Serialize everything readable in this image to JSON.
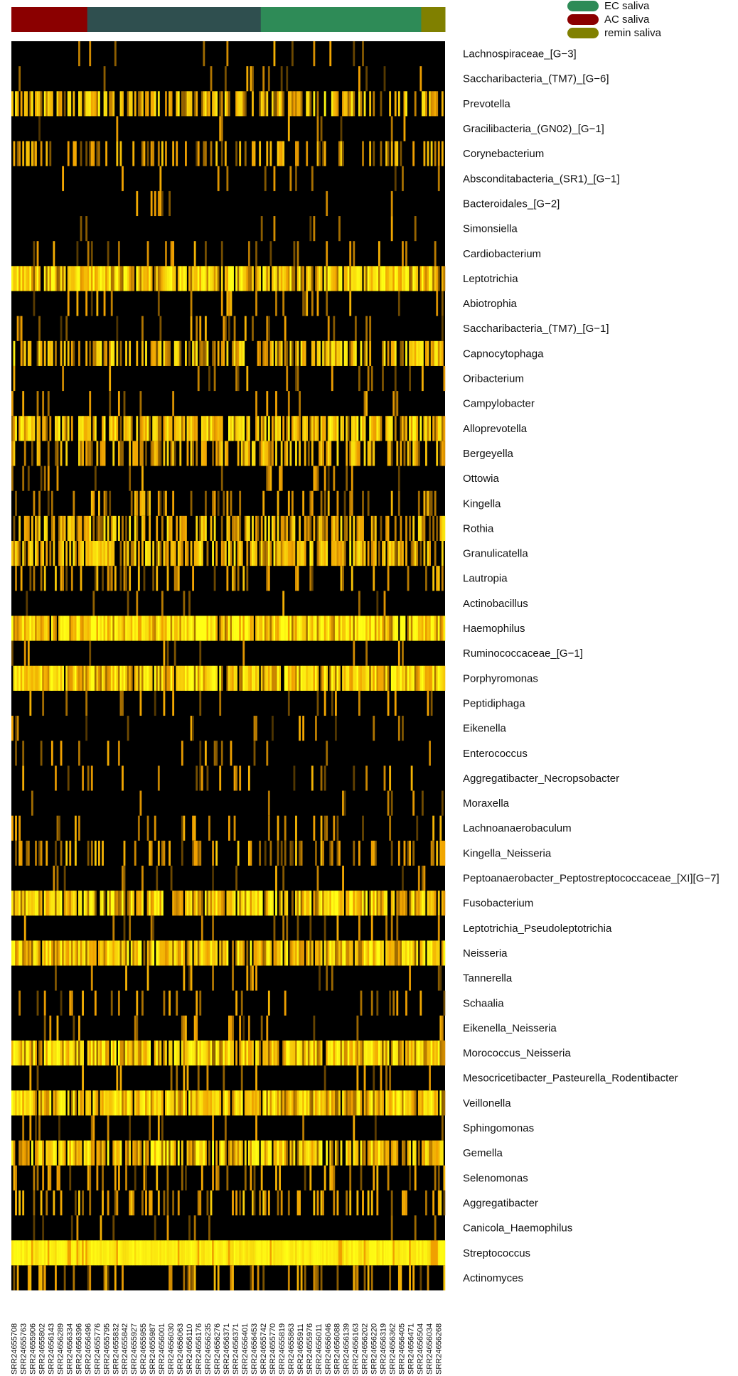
{
  "chart_data": {
    "type": "heatmap",
    "title": "",
    "xlabel": "",
    "ylabel": "",
    "color_scale": [
      "#000000",
      "#5a3a00",
      "#b07a00",
      "#f0b400",
      "#ffff00"
    ],
    "groups": [
      {
        "name": "AC saliva",
        "color": "#8b0000",
        "fraction": 0.175
      },
      {
        "name": "",
        "color": "#2f4f4f",
        "fraction": 0.4
      },
      {
        "name": "EC saliva",
        "color": "#2e8b57",
        "fraction": 0.37
      },
      {
        "name": "remin saliva",
        "color": "#808000",
        "fraction": 0.055
      }
    ],
    "legend": [
      {
        "name": "EC saliva",
        "color": "#2e8b57"
      },
      {
        "name": "AC saliva",
        "color": "#8b0000"
      },
      {
        "name": "remin saliva",
        "color": "#808000"
      }
    ],
    "rows": [
      {
        "label": "Lachnospiraceae_[G−3]",
        "mean": 0.02
      },
      {
        "label": "Saccharibacteria_(TM7)_[G−6]",
        "mean": 0.03
      },
      {
        "label": "Prevotella",
        "mean": 0.4
      },
      {
        "label": "Gracilibacteria_(GN02)_[G−1]",
        "mean": 0.02
      },
      {
        "label": "Corynebacterium",
        "mean": 0.18
      },
      {
        "label": "Absconditabacteria_(SR1)_[G−1]",
        "mean": 0.02
      },
      {
        "label": "Bacteroidales_[G−2]",
        "mean": 0.02
      },
      {
        "label": "Simonsiella",
        "mean": 0.02
      },
      {
        "label": "Cardiobacterium",
        "mean": 0.05
      },
      {
        "label": "Leptotrichia",
        "mean": 0.55
      },
      {
        "label": "Abiotrophia",
        "mean": 0.05
      },
      {
        "label": "Saccharibacteria_(TM7)_[G−1]",
        "mean": 0.04
      },
      {
        "label": "Capnocytophaga",
        "mean": 0.38
      },
      {
        "label": "Oribacterium",
        "mean": 0.04
      },
      {
        "label": "Campylobacter",
        "mean": 0.05
      },
      {
        "label": "Alloprevotella",
        "mean": 0.45
      },
      {
        "label": "Bergeyella",
        "mean": 0.3
      },
      {
        "label": "Ottowia",
        "mean": 0.03
      },
      {
        "label": "Kingella",
        "mean": 0.15
      },
      {
        "label": "Rothia",
        "mean": 0.35
      },
      {
        "label": "Granulicatella",
        "mean": 0.4
      },
      {
        "label": "Lautropia",
        "mean": 0.15
      },
      {
        "label": "Actinobacillus",
        "mean": 0.03
      },
      {
        "label": "Haemophilus",
        "mean": 0.72
      },
      {
        "label": "Ruminococcaceae_[G−1]",
        "mean": 0.02
      },
      {
        "label": "Porphyromonas",
        "mean": 0.62
      },
      {
        "label": "Peptidiphaga",
        "mean": 0.03
      },
      {
        "label": "Eikenella",
        "mean": 0.03
      },
      {
        "label": "Enterococcus",
        "mean": 0.02
      },
      {
        "label": "Aggregatibacter_Necropsobacter",
        "mean": 0.04
      },
      {
        "label": "Moraxella",
        "mean": 0.02
      },
      {
        "label": "Lachnoanaerobaculum",
        "mean": 0.08
      },
      {
        "label": "Kingella_Neisseria",
        "mean": 0.18
      },
      {
        "label": "Peptoanaerobacter_Peptostreptococcaceae_[XI][G−7]",
        "mean": 0.03
      },
      {
        "label": "Fusobacterium",
        "mean": 0.5
      },
      {
        "label": "Leptotrichia_Pseudoleptotrichia",
        "mean": 0.03
      },
      {
        "label": "Neisseria",
        "mean": 0.55
      },
      {
        "label": "Tannerella",
        "mean": 0.05
      },
      {
        "label": "Schaalia",
        "mean": 0.05
      },
      {
        "label": "Eikenella_Neisseria",
        "mean": 0.04
      },
      {
        "label": "Morococcus_Neisseria",
        "mean": 0.55
      },
      {
        "label": "Mesocricetibacter_Pasteurella_Rodentibacter",
        "mean": 0.03
      },
      {
        "label": "Veillonella",
        "mean": 0.55
      },
      {
        "label": "Sphingomonas",
        "mean": 0.03
      },
      {
        "label": "Gemella",
        "mean": 0.5
      },
      {
        "label": "Selenomonas",
        "mean": 0.1
      },
      {
        "label": "Aggregatibacter",
        "mean": 0.2
      },
      {
        "label": "Canicola_Haemophilus",
        "mean": 0.02
      },
      {
        "label": "Streptococcus",
        "mean": 0.95
      },
      {
        "label": "Actinomyces",
        "mean": 0.12
      }
    ],
    "n_columns": 240,
    "column_labels": [
      "SRR24655708",
      "SRR24655763",
      "SRR24655906",
      "SRR24655802",
      "SRR24656143",
      "SRR24656289",
      "SRR24656334",
      "SRR24656396",
      "SRR24656496",
      "SRR24655776",
      "SRR24655795",
      "SRR24655832",
      "SRR24655842",
      "SRR24655927",
      "SRR24655955",
      "SRR24655987",
      "SRR24656001",
      "SRR24656030",
      "SRR24656063",
      "SRR24656110",
      "SRR24656176",
      "SRR24656235",
      "SRR24656276",
      "SRR24656371",
      "SRR24656371",
      "SRR24656401",
      "SRR24656453",
      "SRR24655742",
      "SRR24655770",
      "SRR24655819",
      "SRR24655863",
      "SRR24655911",
      "SRR24655976",
      "SRR24656011",
      "SRR24656046",
      "SRR24656088",
      "SRR24656139",
      "SRR24656163",
      "SRR24656202",
      "SRR24656220",
      "SRR24656319",
      "SRR24656362",
      "SRR24656405",
      "SRR24656471",
      "SRR24656504",
      "SRR24656034",
      "SRR24656268"
    ]
  }
}
